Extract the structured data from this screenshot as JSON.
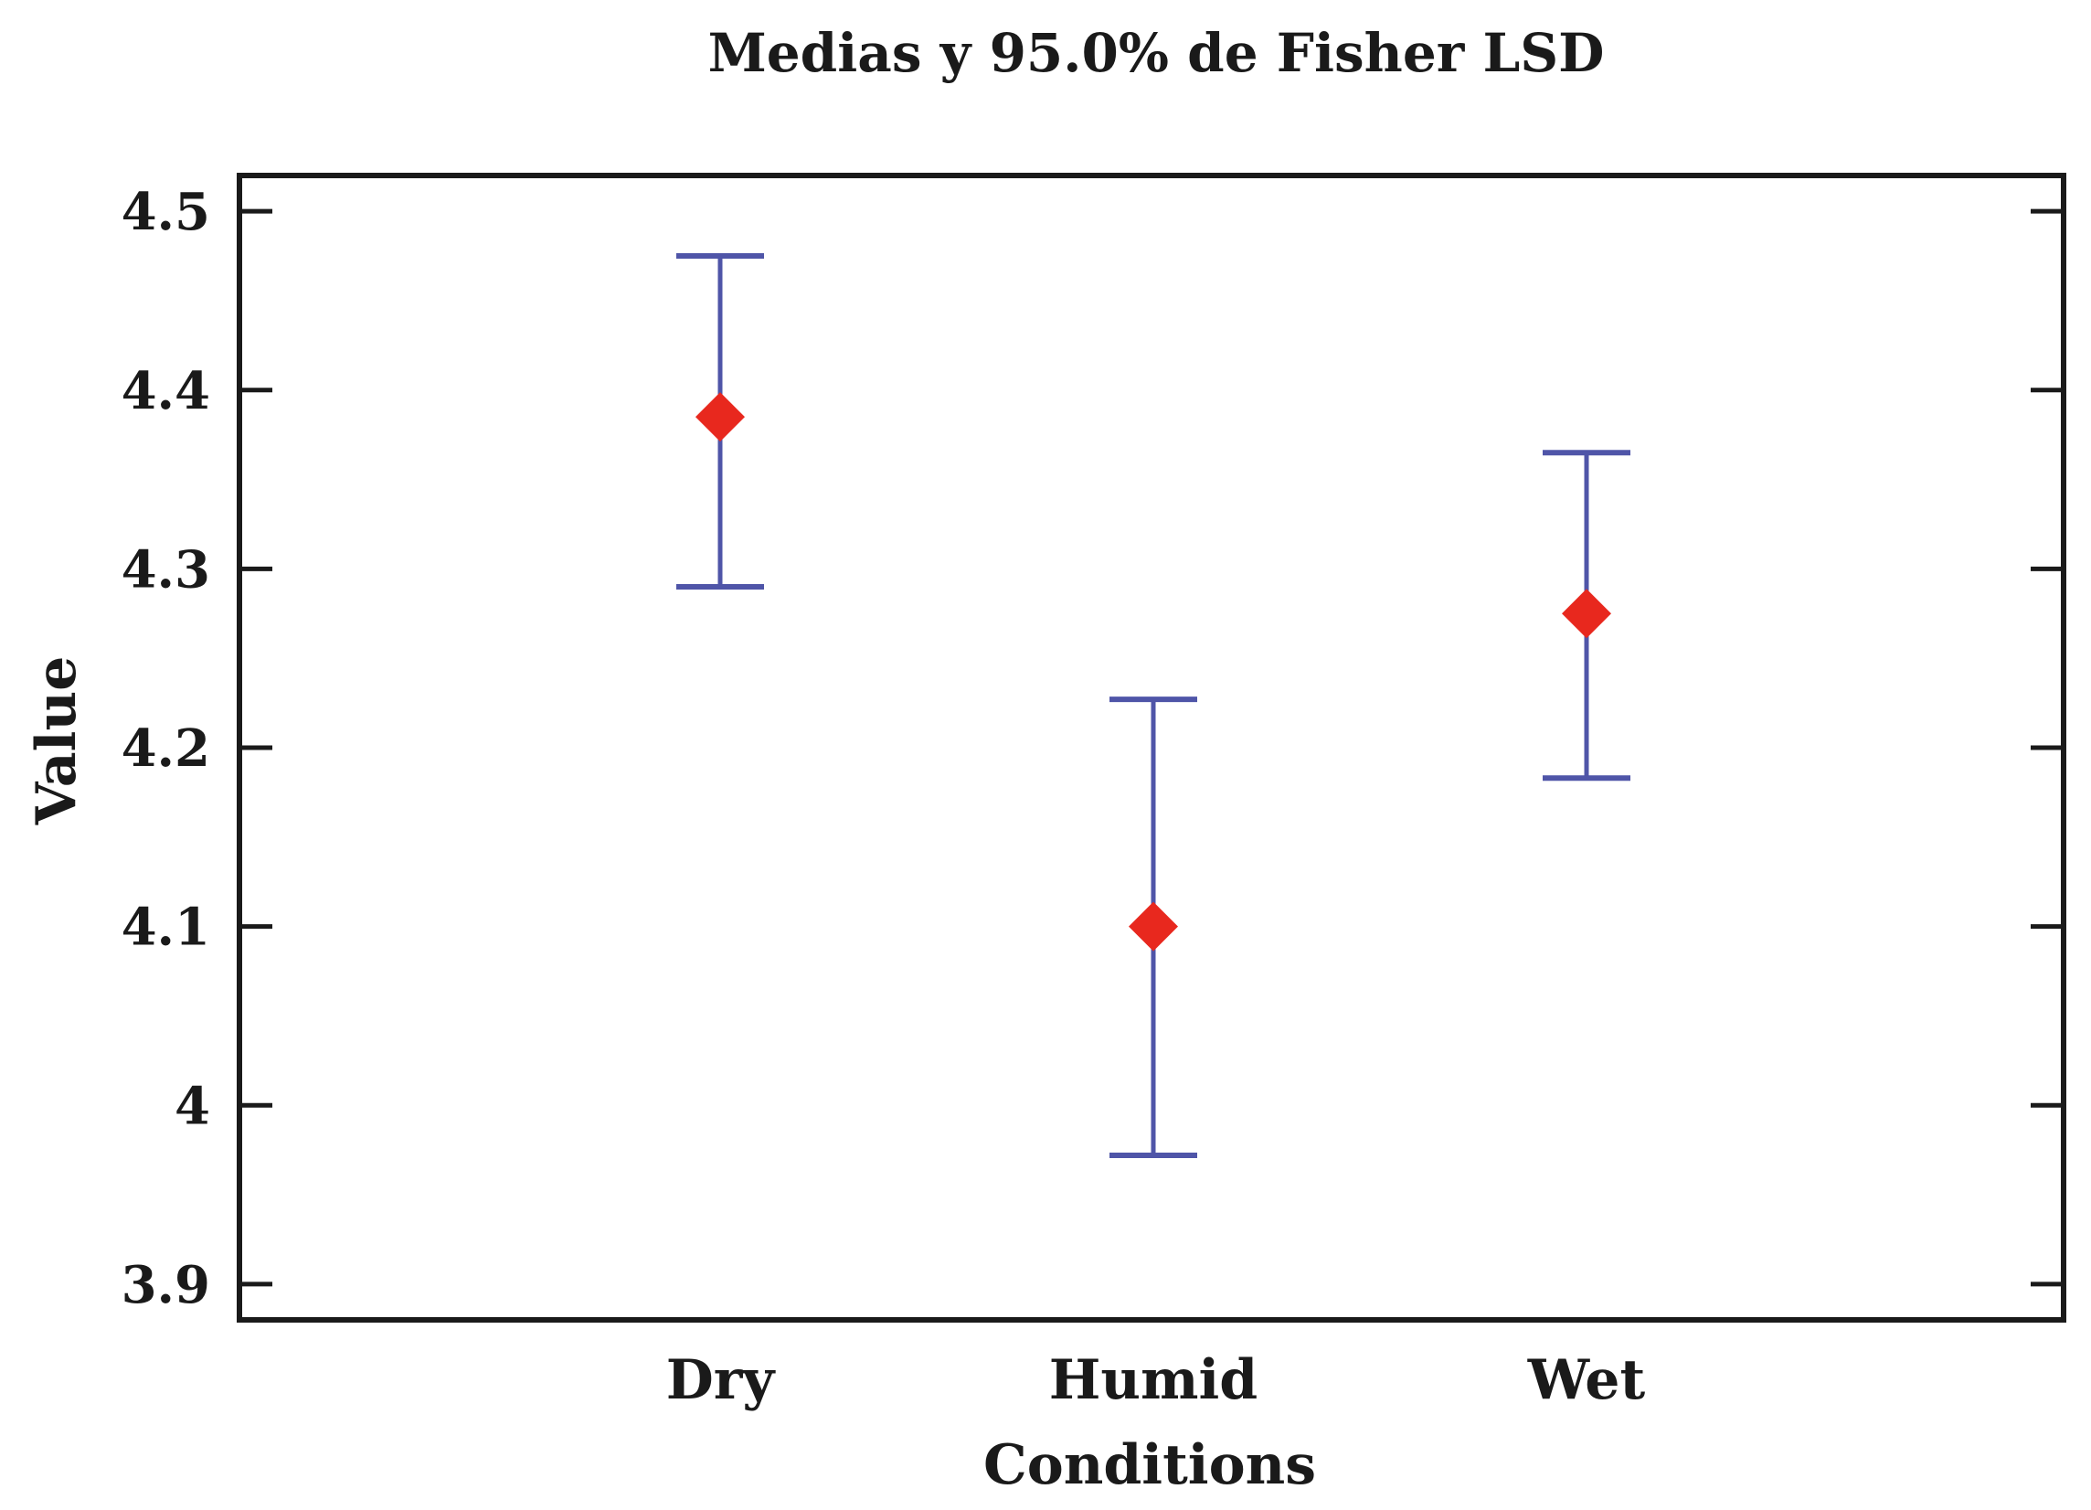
{
  "chart_data": {
    "type": "scatter",
    "subtype": "means-with-interval-bars",
    "title": "Medias y 95.0% de Fisher LSD",
    "xlabel": "Conditions",
    "ylabel": "Value",
    "categories": [
      "Dry",
      "Humid",
      "Wet"
    ],
    "means": [
      4.385,
      4.1,
      4.275
    ],
    "lower": [
      4.29,
      3.972,
      4.183
    ],
    "upper": [
      4.475,
      4.227,
      4.365
    ],
    "ylim": [
      3.88,
      4.52
    ],
    "yticks": [
      3.9,
      4,
      4.1,
      4.2,
      4.3,
      4.4,
      4.5
    ],
    "ytick_labels": [
      "3.9",
      "4",
      "4.1",
      "4.2",
      "4.3",
      "4.4",
      "4.5"
    ],
    "grid": false,
    "legend": "none",
    "colors": {
      "marker": "#e8281e",
      "interval": "#4f55a8",
      "axes": "#1a1a1a"
    },
    "icons": {
      "marker": "diamond"
    }
  }
}
